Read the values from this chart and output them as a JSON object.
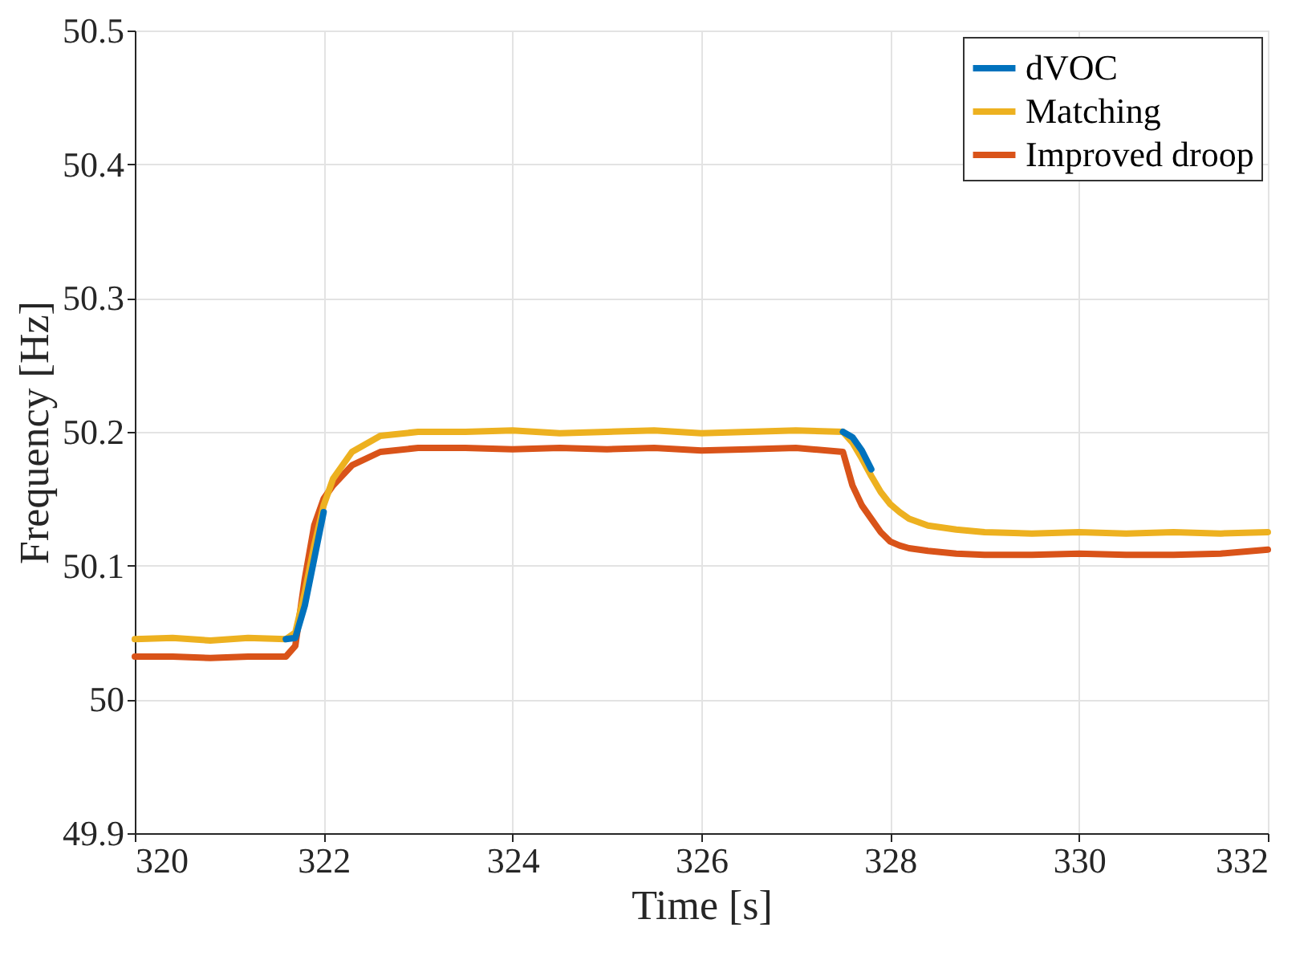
{
  "chart_data": {
    "type": "line",
    "xlabel": "Time [s]",
    "ylabel": "Frequency [Hz]",
    "x": [
      320,
      320.4,
      320.8,
      321.2,
      321.6,
      321.7,
      321.8,
      321.9,
      322.0,
      322.1,
      322.3,
      322.6,
      323,
      323.5,
      324,
      324.5,
      325,
      325.5,
      326,
      326.5,
      327,
      327.5,
      327.6,
      327.7,
      327.8,
      327.9,
      328.0,
      328.1,
      328.2,
      328.4,
      328.7,
      329,
      329.5,
      330,
      330.5,
      331,
      331.5,
      332
    ],
    "series": [
      {
        "name": "dVOC",
        "color": "#0072bd",
        "values": [
          null,
          null,
          null,
          null,
          50.045,
          50.046,
          50.07,
          50.105,
          50.14,
          null,
          null,
          null,
          null,
          null,
          null,
          null,
          null,
          null,
          null,
          null,
          null,
          50.2,
          50.196,
          50.186,
          50.172,
          null,
          null,
          null,
          null,
          null,
          null,
          null,
          null,
          null,
          null,
          null,
          null,
          null
        ]
      },
      {
        "name": "Matching",
        "color": "#edb120",
        "values": [
          50.045,
          50.046,
          50.044,
          50.046,
          50.045,
          50.05,
          50.08,
          50.115,
          50.145,
          50.165,
          50.185,
          50.197,
          50.2,
          50.2,
          50.201,
          50.199,
          50.2,
          50.201,
          50.199,
          50.2,
          50.201,
          50.2,
          50.192,
          50.18,
          50.167,
          50.155,
          50.146,
          50.14,
          50.135,
          50.13,
          50.127,
          50.125,
          50.124,
          50.125,
          50.124,
          50.125,
          50.124,
          50.125
        ]
      },
      {
        "name": "Improved droop",
        "color": "#d95319",
        "values": [
          50.032,
          50.032,
          50.031,
          50.032,
          50.032,
          50.04,
          50.09,
          50.13,
          50.15,
          50.16,
          50.175,
          50.185,
          50.188,
          50.188,
          50.187,
          50.188,
          50.187,
          50.188,
          50.186,
          50.187,
          50.188,
          50.185,
          50.16,
          50.145,
          50.135,
          50.125,
          50.118,
          50.115,
          50.113,
          50.111,
          50.109,
          50.108,
          50.108,
          50.109,
          50.108,
          50.108,
          50.109,
          50.112
        ]
      }
    ],
    "xlim": [
      320,
      332
    ],
    "xticks": [
      320,
      322,
      324,
      326,
      328,
      330,
      332
    ],
    "ylim": [
      49.9,
      50.5
    ],
    "yticks": [
      49.9,
      50,
      50.1,
      50.2,
      50.3,
      50.4,
      50.5
    ],
    "grid": true,
    "legend": "top right",
    "line_style": "solid",
    "marker": "none"
  }
}
